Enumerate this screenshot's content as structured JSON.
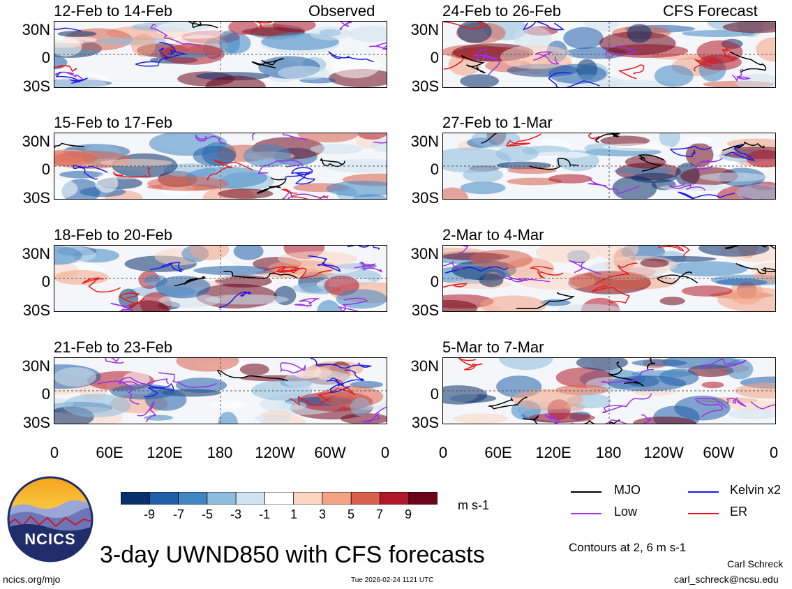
{
  "header": {
    "observed_label": "Observed",
    "forecast_label": "CFS Forecast"
  },
  "panels_left": [
    {
      "title": "12-Feb to 14-Feb"
    },
    {
      "title": "15-Feb to 17-Feb"
    },
    {
      "title": "18-Feb to 20-Feb"
    },
    {
      "title": "21-Feb to 23-Feb"
    }
  ],
  "panels_right": [
    {
      "title": "24-Feb to 26-Feb"
    },
    {
      "title": "27-Feb to 1-Mar"
    },
    {
      "title": "2-Mar to 4-Mar"
    },
    {
      "title": "5-Mar to 7-Mar"
    }
  ],
  "axes": {
    "y_ticks": [
      "30N",
      "0",
      "30S"
    ],
    "x_ticks": [
      "0",
      "60E",
      "120E",
      "180",
      "120W",
      "60W",
      "0"
    ]
  },
  "colorbar": {
    "labels": [
      "-9",
      "-7",
      "-5",
      "-3",
      "-1",
      "1",
      "3",
      "5",
      "7",
      "9"
    ],
    "colors": [
      "#08306b",
      "#1f5fa8",
      "#3f86c2",
      "#8dbcdc",
      "#cfe2ef",
      "#ffffff",
      "#fbd5c2",
      "#f2a383",
      "#d8604d",
      "#b0172a",
      "#6b0519"
    ],
    "units": "m s-1"
  },
  "legend": {
    "items": [
      {
        "label": "MJO",
        "color": "#000000"
      },
      {
        "label": "Kelvin x2",
        "color": "#1a1ae6"
      },
      {
        "label": "Low",
        "color": "#9b30e6"
      },
      {
        "label": "ER",
        "color": "#e61a1a"
      }
    ],
    "contours_note": "Contours at 2, 6 m s-1"
  },
  "footer": {
    "main_title": "3-day UWND850 with CFS forecasts",
    "logo_text": "NCICS",
    "url": "ncics.org/mjo",
    "timestamp": "Tue 2026-02-24 1121 UTC",
    "author": "Carl Schreck",
    "email": "carl_schreck@ncsu.edu"
  },
  "chart_data": {
    "type": "heatmap",
    "title": "3-day UWND850 with CFS forecasts",
    "variable": "850-hPa zonal wind anomaly",
    "units": "m s-1",
    "xlim": [
      0,
      360
    ],
    "ylim": [
      -40,
      40
    ],
    "x_ticks": [
      "0",
      "60E",
      "120E",
      "180",
      "120W",
      "60W",
      "0"
    ],
    "y_ticks": [
      "30N",
      "0",
      "30S"
    ],
    "contour_levels": [
      2,
      6
    ],
    "panels": [
      {
        "title": "12-Feb to 14-Feb",
        "source": "Observed"
      },
      {
        "title": "15-Feb to 17-Feb",
        "source": "Observed"
      },
      {
        "title": "18-Feb to 20-Feb",
        "source": "Observed"
      },
      {
        "title": "21-Feb to 23-Feb",
        "source": "Observed"
      },
      {
        "title": "24-Feb to 26-Feb",
        "source": "CFS Forecast"
      },
      {
        "title": "27-Feb to 1-Mar",
        "source": "CFS Forecast"
      },
      {
        "title": "2-Mar to 4-Mar",
        "source": "CFS Forecast"
      },
      {
        "title": "5-Mar to 7-Mar",
        "source": "CFS Forecast"
      }
    ]
  }
}
